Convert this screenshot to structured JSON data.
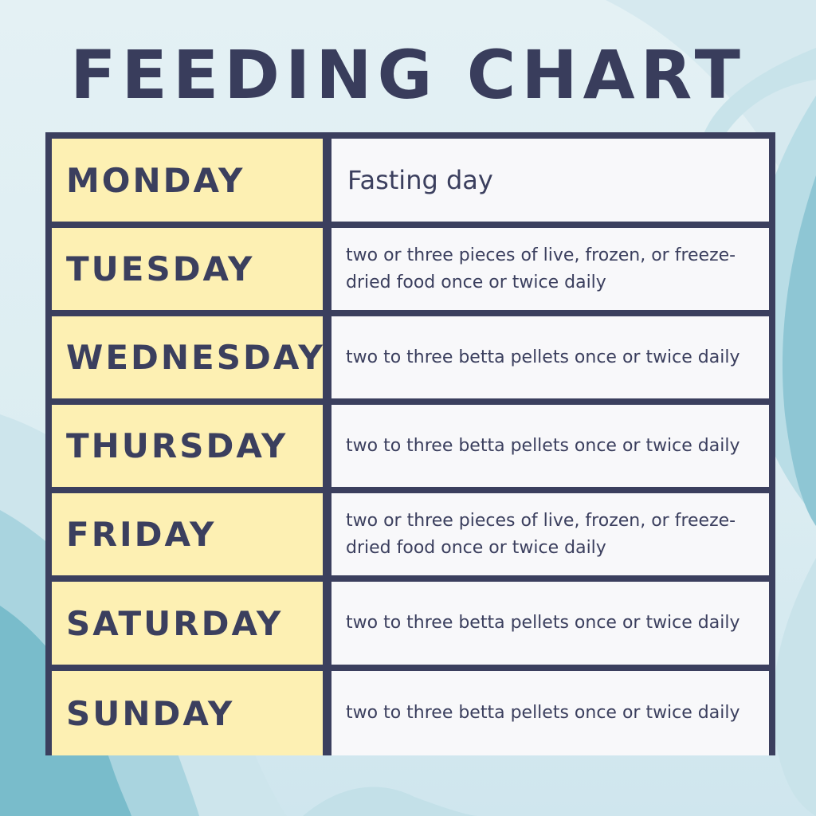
{
  "title": "FEEDING CHART",
  "colors": {
    "title": "#393d5c",
    "border": "#3b3f5e",
    "day_cell": "#fdf0b3",
    "description_cell": "#f8f8fa",
    "background": "#dcedf2",
    "wave_accent": "#7fbfd0"
  },
  "rows": [
    {
      "day": "MONDAY",
      "description": "Fasting day"
    },
    {
      "day": "TUESDAY",
      "description": "two or three pieces of live, frozen, or freeze-dried food once or twice daily"
    },
    {
      "day": "WEDNESDAY",
      "description": "two to three betta pellets once or twice daily"
    },
    {
      "day": "THURSDAY",
      "description": "two to three betta pellets once or twice daily"
    },
    {
      "day": "FRIDAY",
      "description": "two or three pieces of live, frozen, or freeze-dried food once or twice daily"
    },
    {
      "day": "SATURDAY",
      "description": "two to three betta pellets once or twice daily"
    },
    {
      "day": "SUNDAY",
      "description": "two to three betta pellets once or twice daily"
    }
  ]
}
